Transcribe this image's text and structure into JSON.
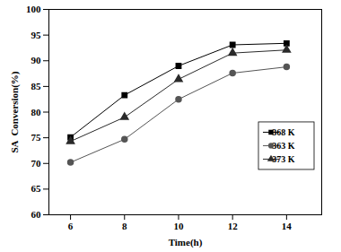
{
  "chart_data": {
    "type": "line",
    "x_label": "Time(h)",
    "y_label": "SA  Conversion(%)",
    "x": [
      6,
      8,
      10,
      12,
      14
    ],
    "xlim": [
      5.2,
      15.3
    ],
    "xticks": [
      6,
      8,
      10,
      12,
      14
    ],
    "ylim": [
      60,
      100
    ],
    "yticks": [
      60,
      65,
      70,
      75,
      80,
      85,
      90,
      95,
      100
    ],
    "grid": false,
    "legend": "right",
    "series": [
      {
        "name": "368 K",
        "color": "#000000",
        "marker": "square",
        "values": [
          75.1,
          83.3,
          89.0,
          93.1,
          93.4
        ]
      },
      {
        "name": "363 K",
        "color": "#555555",
        "marker": "circle",
        "values": [
          70.2,
          74.7,
          82.5,
          87.6,
          88.8
        ]
      },
      {
        "name": "373 K",
        "color": "#2a2a2a",
        "marker": "triangle",
        "values": [
          74.3,
          79.0,
          86.4,
          91.5,
          92.1
        ]
      }
    ]
  }
}
